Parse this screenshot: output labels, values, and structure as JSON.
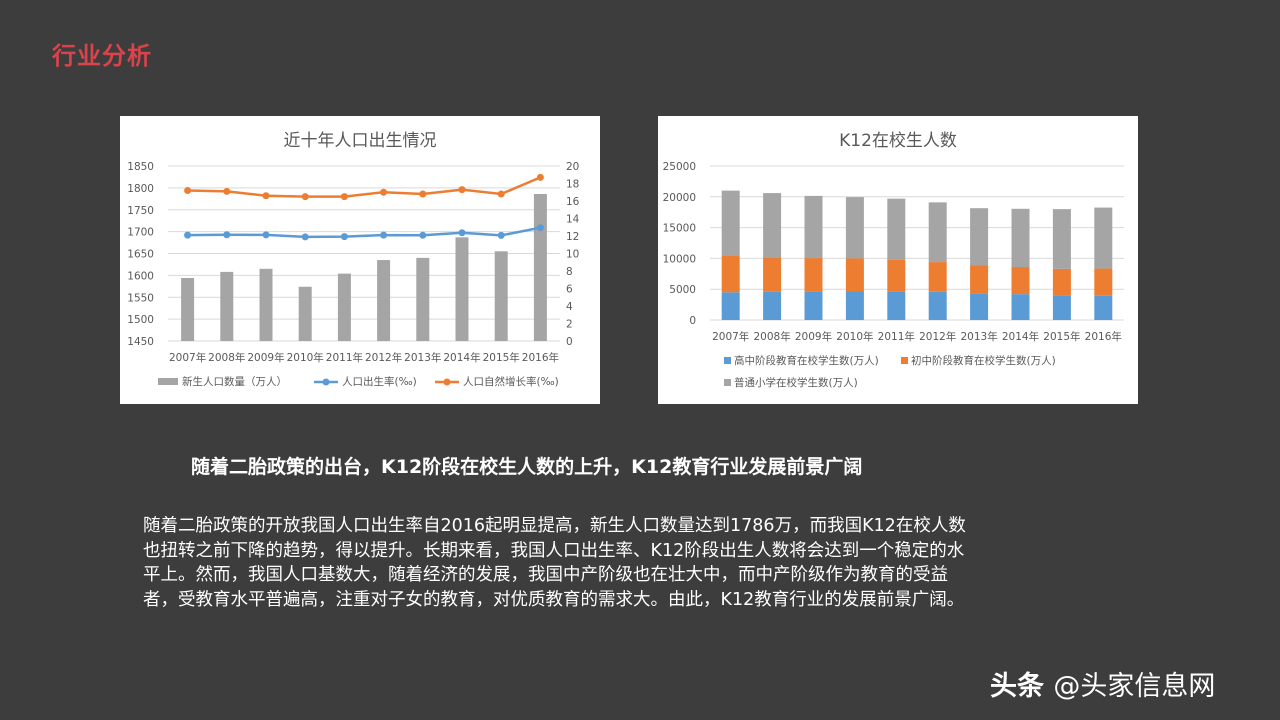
{
  "slide": {
    "title": "行业分析",
    "headline": "随着二胎政策的出台，K12阶段在校生人数的上升，K12教育行业发展前景广阔",
    "body_lines": [
      "随着二胎政策的开放我国人口出生率自2016起明显提高，新生人口数量达到1786万，而我国K12在校人数",
      "也扭转之前下降的趋势，得以提升。长期来看，我国人口出生率、K12阶段出生人数将会达到一个稳定的水",
      "平上。然而，我国人口基数大，随着经济的发展，我国中产阶级也在壮大中，而中产阶级作为教育的受益",
      "者，受教育水平普遍高，注重对子女的教育，对优质教育的需求大。由此，K12教育行业的发展前景广阔。"
    ],
    "watermark_brand": "头条",
    "watermark_handle": "@头家信息网",
    "colors": {
      "title": "#d9434b",
      "background": "#3d3d3d",
      "gray_series": "#a5a5a5",
      "blue_series": "#5b9bd5",
      "orange_series": "#ed7d31"
    }
  },
  "chart_data": [
    {
      "type": "bar+line",
      "title": "近十年人口出生情况",
      "categories": [
        "2007年",
        "2008年",
        "2009年",
        "2010年",
        "2011年",
        "2012年",
        "2013年",
        "2014年",
        "2015年",
        "2016年"
      ],
      "y_left": {
        "ticks": [
          1450,
          1500,
          1550,
          1600,
          1650,
          1700,
          1750,
          1800,
          1850
        ],
        "lim": [
          1450,
          1850
        ]
      },
      "y_right": {
        "ticks": [
          0,
          2,
          4,
          6,
          8,
          10,
          12,
          14,
          16,
          18,
          20
        ],
        "lim": [
          0,
          20
        ]
      },
      "series": [
        {
          "name": "新生人口数量（万人）",
          "type": "bar",
          "axis": "left",
          "color": "#a5a5a5",
          "values": [
            1594,
            1608,
            1615,
            1574,
            1604,
            1635,
            1640,
            1687,
            1655,
            1786
          ]
        },
        {
          "name": "人口出生率(‰)",
          "type": "line",
          "axis": "right",
          "color": "#5b9bd5",
          "values": [
            12.1,
            12.14,
            12.13,
            11.9,
            11.93,
            12.1,
            12.08,
            12.37,
            12.07,
            12.95
          ]
        },
        {
          "name": "人口自然增长率(‰)",
          "type": "line",
          "axis": "right",
          "color": "#ed7d31",
          "values": [
            17.2,
            17.1,
            16.6,
            16.5,
            16.5,
            17.0,
            16.8,
            17.3,
            16.8,
            18.7
          ]
        }
      ],
      "legend_position": "bottom"
    },
    {
      "type": "stacked_bar",
      "title": "K12在校生人数",
      "categories": [
        "2007年",
        "2008年",
        "2009年",
        "2010年",
        "2011年",
        "2012年",
        "2013年",
        "2014年",
        "2015年",
        "2016年"
      ],
      "y": {
        "ticks": [
          0,
          5000,
          10000,
          15000,
          20000,
          25000
        ],
        "lim": [
          0,
          25000
        ]
      },
      "series": [
        {
          "name": "高中阶段教育在校学生数(万人)",
          "color": "#5b9bd5",
          "values": [
            4500,
            4600,
            4650,
            4700,
            4650,
            4600,
            4350,
            4200,
            4000,
            3950
          ]
        },
        {
          "name": "初中阶段教育在校学生数(万人)",
          "color": "#ed7d31",
          "values": [
            6000,
            5600,
            5400,
            5300,
            5100,
            4800,
            4500,
            4400,
            4300,
            4400
          ]
        },
        {
          "name": "普通小学在校学生数(万人)",
          "color": "#a5a5a5",
          "values": [
            10500,
            10400,
            10100,
            9950,
            9950,
            9700,
            9300,
            9450,
            9700,
            9900
          ]
        }
      ],
      "legend_position": "bottom"
    }
  ]
}
